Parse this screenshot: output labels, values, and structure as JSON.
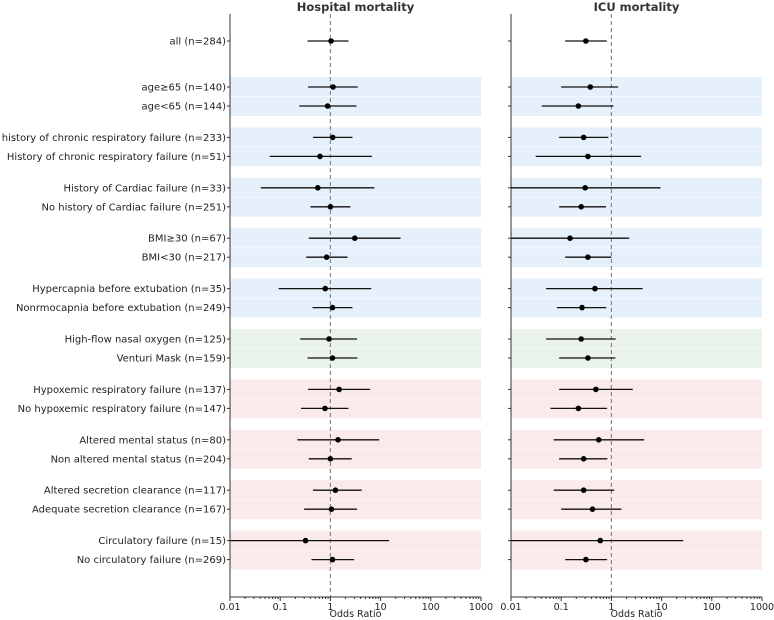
{
  "chart_data": {
    "type": "forest",
    "xscale": "log",
    "xlim": [
      0.01,
      1000
    ],
    "xticks": [
      "0.01",
      "0.1",
      "1",
      "10",
      "100",
      "1000"
    ],
    "xtick_values": [
      0.01,
      0.1,
      1,
      10,
      100,
      1000
    ],
    "reference_line": 1,
    "xlabel": "Odds Ratio",
    "group_colors": {
      "blue": "#e6f0fb",
      "green": "#eaf3ea",
      "red": "#fbeaea"
    },
    "rows": [
      {
        "label": "all (n=284)",
        "group": 0,
        "color": null
      },
      {
        "label": "age≥65 (n=140)",
        "group": 1,
        "color": "blue"
      },
      {
        "label": "age<65 (n=144)",
        "group": 1,
        "color": "blue"
      },
      {
        "label": "No history of chronic respiratory failure (n=233)",
        "group": 2,
        "color": "blue"
      },
      {
        "label": "History of chronic respiratory failure (n=51)",
        "group": 2,
        "color": "blue"
      },
      {
        "label": "History of Cardiac failure (n=33)",
        "group": 3,
        "color": "blue"
      },
      {
        "label": "No history of Cardiac failure (n=251)",
        "group": 3,
        "color": "blue"
      },
      {
        "label": "BMI≥30 (n=67)",
        "group": 4,
        "color": "blue"
      },
      {
        "label": "BMI<30 (n=217)",
        "group": 4,
        "color": "blue"
      },
      {
        "label": "Hypercapnia before extubation (n=35)",
        "group": 5,
        "color": "blue"
      },
      {
        "label": "Nonrmocapnia before extubation (n=249)",
        "group": 5,
        "color": "blue"
      },
      {
        "label": "High-flow nasal oxygen (n=125)",
        "group": 6,
        "color": "green"
      },
      {
        "label": "Venturi Mask (n=159)",
        "group": 6,
        "color": "green"
      },
      {
        "label": "Hypoxemic respiratory failure (n=137)",
        "group": 7,
        "color": "red"
      },
      {
        "label": "No hypoxemic respiratory failure (n=147)",
        "group": 7,
        "color": "red"
      },
      {
        "label": "Altered mental status (n=80)",
        "group": 8,
        "color": "red"
      },
      {
        "label": "Non altered mental status (n=204)",
        "group": 8,
        "color": "red"
      },
      {
        "label": "Altered secretion clearance (n=117)",
        "group": 9,
        "color": "red"
      },
      {
        "label": "Adequate secretion clearance (n=167)",
        "group": 9,
        "color": "red"
      },
      {
        "label": "Circulatory failure (n=15)",
        "group": 10,
        "color": "red"
      },
      {
        "label": "No circulatory failure (n=269)",
        "group": 10,
        "color": "red"
      }
    ],
    "panels": [
      {
        "title": "Hospital mortality",
        "or": [
          1.03,
          1.13,
          0.88,
          1.11,
          0.62,
          0.56,
          1.0,
          3.06,
          0.84,
          0.79,
          1.1,
          0.94,
          1.1,
          1.49,
          0.78,
          1.42,
          1.0,
          1.26,
          1.05,
          0.32,
          1.1
        ],
        "lo": [
          0.35,
          0.36,
          0.24,
          0.45,
          0.062,
          0.041,
          0.4,
          0.37,
          0.33,
          0.093,
          0.44,
          0.25,
          0.35,
          0.36,
          0.26,
          0.22,
          0.37,
          0.45,
          0.3,
          0.01,
          0.42
        ],
        "hi": [
          2.3,
          3.5,
          3.3,
          2.75,
          6.7,
          7.5,
          2.5,
          25,
          2.2,
          6.5,
          2.75,
          3.4,
          3.45,
          6.2,
          2.29,
          9.4,
          2.66,
          4.2,
          3.4,
          14.8,
          2.97
        ]
      },
      {
        "title": "ICU mortality",
        "or": [
          0.31,
          0.38,
          0.22,
          0.28,
          0.34,
          0.3,
          0.25,
          0.15,
          0.34,
          0.47,
          0.26,
          0.25,
          0.34,
          0.49,
          0.22,
          0.56,
          0.28,
          0.28,
          0.42,
          0.6,
          0.31
        ],
        "lo": [
          0.12,
          0.1,
          0.041,
          0.091,
          0.031,
          0.01,
          0.091,
          0.01,
          0.12,
          0.05,
          0.082,
          0.05,
          0.091,
          0.091,
          0.061,
          0.071,
          0.091,
          0.071,
          0.1,
          0.01,
          0.12
        ],
        "hi": [
          0.81,
          1.36,
          1.1,
          0.87,
          3.9,
          9.5,
          0.78,
          2.26,
          1.0,
          4.2,
          0.79,
          1.22,
          1.2,
          2.67,
          0.82,
          4.5,
          0.83,
          1.13,
          1.58,
          27,
          0.82
        ]
      }
    ]
  }
}
